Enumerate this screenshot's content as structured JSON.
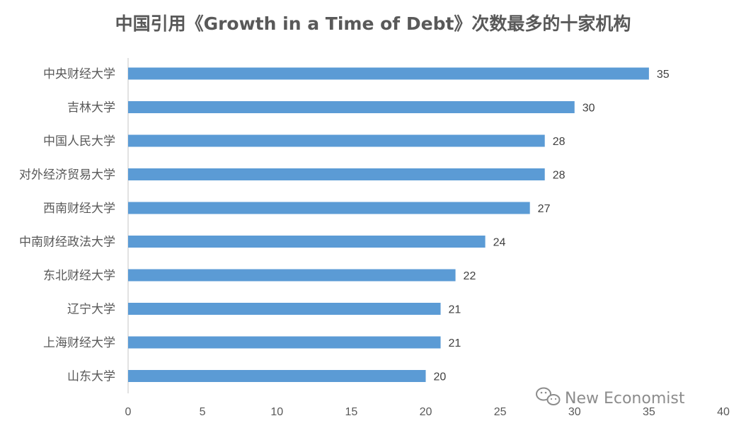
{
  "chart_data": {
    "type": "bar",
    "orientation": "horizontal",
    "title": "中国引用《Growth in a Time of Debt》次数最多的十家机构",
    "categories": [
      "中央财经大学",
      "吉林大学",
      "中国人民大学",
      "对外经济贸易大学",
      "西南财经大学",
      "中南财经政法大学",
      "东北财经大学",
      "辽宁大学",
      "上海财经大学",
      "山东大学"
    ],
    "values": [
      35,
      30,
      28,
      28,
      27,
      24,
      22,
      21,
      21,
      20
    ],
    "xlim": [
      0,
      40
    ],
    "xticks": [
      "0",
      "5",
      "10",
      "15",
      "20",
      "25",
      "30",
      "35",
      "40"
    ],
    "xlabel": "",
    "ylabel": "",
    "grid": false,
    "data_labels": true,
    "bar_color": "#5b9bd5"
  },
  "watermark": {
    "text": "New Economist",
    "icon": "wechat-icon"
  }
}
